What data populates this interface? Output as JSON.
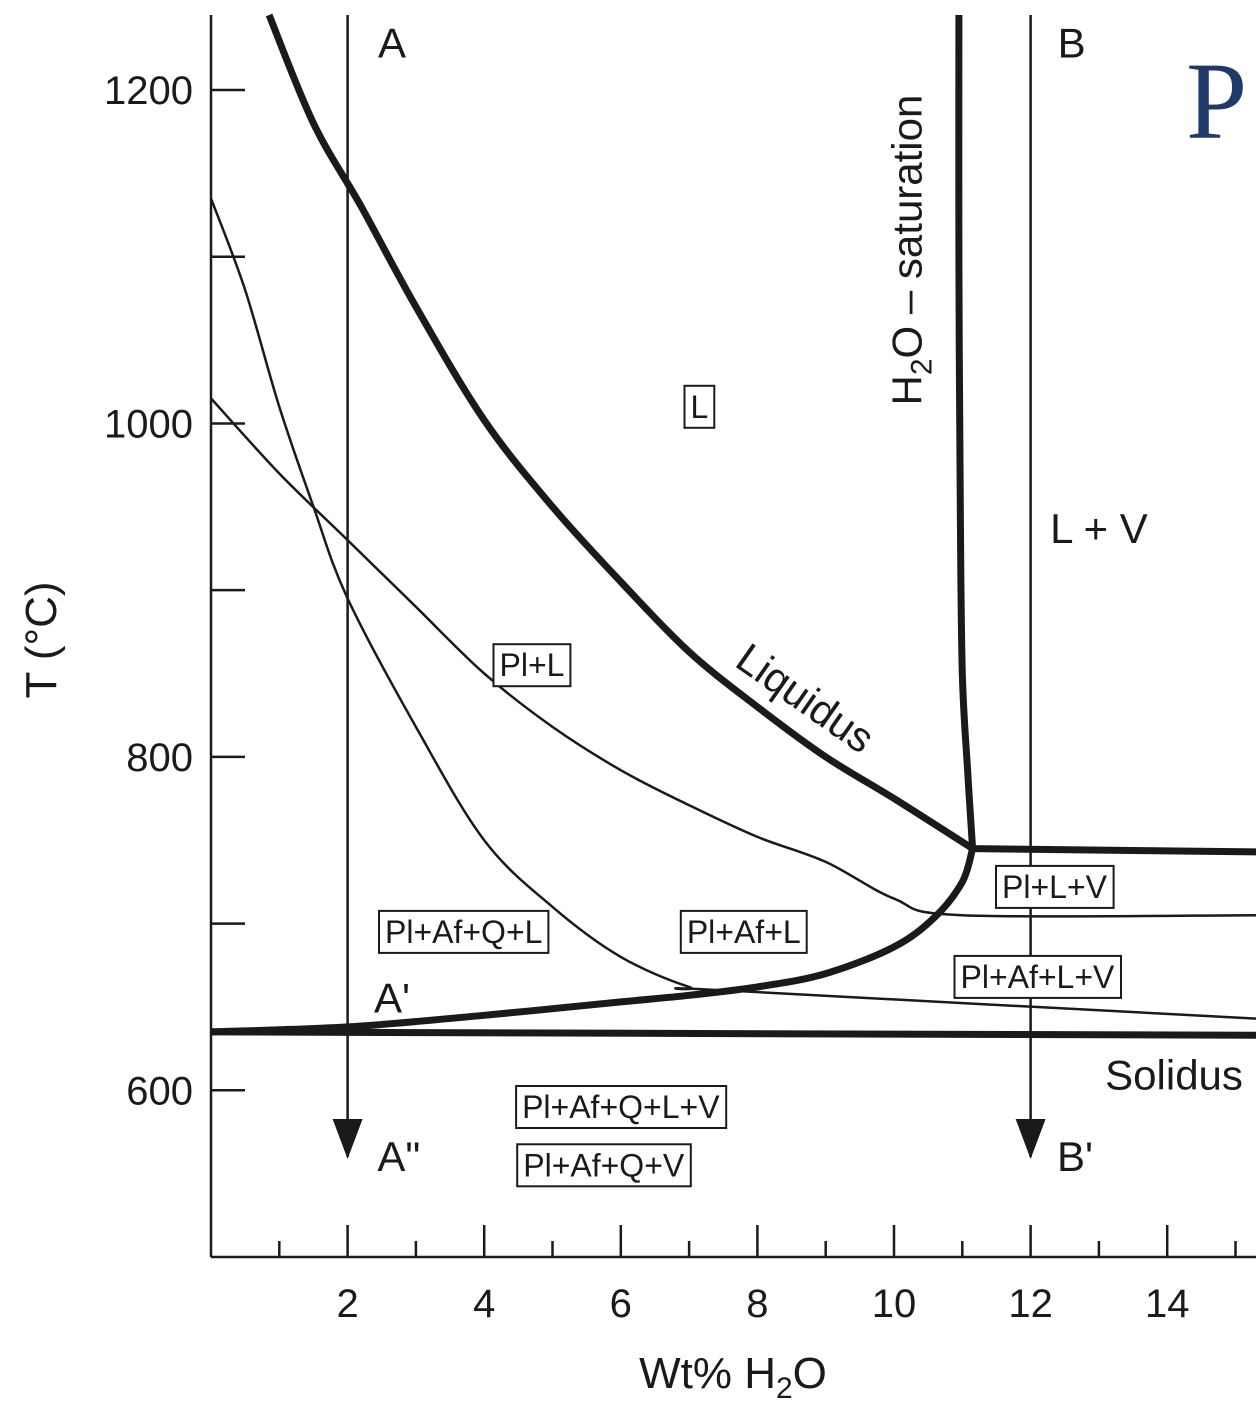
{
  "chart_data": {
    "type": "line",
    "title": "",
    "xlabel": "Wt% H",
    "xlabel_sub": "2",
    "xlabel_tail": "O",
    "ylabel": "T (°C)",
    "xlim": [
      0,
      15.3
    ],
    "ylim": [
      500,
      1245
    ],
    "x_ticks": [
      2,
      4,
      6,
      8,
      10,
      12,
      14
    ],
    "x_minor_ticks": [
      1,
      3,
      5,
      7,
      9,
      11,
      13,
      15
    ],
    "y_ticks": [
      600,
      800,
      1000,
      1200
    ],
    "y_minor_ticks": [
      700,
      900,
      1100
    ],
    "grid": false,
    "corner_glyph": "P",
    "series": [
      {
        "id": "liquidus",
        "name": "Liquidus",
        "weight": "thick",
        "x": [
          0.85,
          1.5,
          2.2,
          3.0,
          4.0,
          5.0,
          6.0,
          7.0,
          8.0,
          9.0,
          10.0,
          11.15
        ],
        "y": [
          1245,
          1180,
          1130,
          1070,
          1002,
          950,
          905,
          863,
          830,
          800,
          775,
          745
        ]
      },
      {
        "id": "h2o-saturation",
        "name": "H₂O – saturation",
        "weight": "thick",
        "x": [
          10.95,
          10.95,
          10.97,
          11.0,
          11.08,
          11.15
        ],
        "y": [
          1245,
          1100,
          950,
          850,
          790,
          745
        ]
      },
      {
        "id": "l-v-boundary",
        "weight": "thick",
        "x": [
          11.15,
          15.3
        ],
        "y": [
          745,
          743
        ]
      },
      {
        "id": "vapor-saturation-curve",
        "weight": "thick",
        "x": [
          11.15,
          11.0,
          10.6,
          10.0,
          9.0,
          8.0,
          7.0,
          6.0,
          4.0,
          2.0,
          0.0
        ],
        "y": [
          745,
          725,
          704,
          686,
          670,
          662,
          657,
          653,
          645,
          638,
          635
        ]
      },
      {
        "id": "solidus",
        "name": "Solidus",
        "weight": "thick",
        "x": [
          0.0,
          15.3
        ],
        "y": [
          635,
          633
        ]
      },
      {
        "id": "pl-in",
        "weight": "thin",
        "x": [
          0.0,
          1.0,
          2.0,
          3.0,
          4.0,
          5.0,
          6.0,
          7.0,
          8.0,
          9.0,
          10.0,
          11.0,
          15.3
        ],
        "y": [
          1015,
          970,
          930,
          890,
          850,
          818,
          792,
          771,
          752,
          737,
          715,
          705,
          705
        ]
      },
      {
        "id": "af-in",
        "weight": "thin",
        "x": [
          0.0,
          0.5,
          1.0,
          1.5,
          2.0,
          3.0,
          4.0,
          5.0,
          6.0,
          7.0,
          7.5,
          15.3
        ],
        "y": [
          1135,
          1080,
          1010,
          950,
          895,
          818,
          750,
          710,
          680,
          662,
          660,
          643
        ]
      }
    ],
    "paths": [
      {
        "id": "path-a",
        "x": 2.0,
        "y_from": 1245,
        "y_to": 560
      },
      {
        "id": "path-b",
        "x": 12.0,
        "y_from": 1245,
        "y_to": 560
      }
    ],
    "region_labels": [
      {
        "id": "l",
        "text": "L",
        "x": 7.15,
        "y": 1010,
        "boxed": true
      },
      {
        "id": "pl-l",
        "text": "Pl+L",
        "x": 4.7,
        "y": 855,
        "boxed": true
      },
      {
        "id": "pl-af-q-l",
        "text": "Pl+Af+Q+L",
        "x": 3.7,
        "y": 695,
        "boxed": true
      },
      {
        "id": "pl-af-l",
        "text": "Pl+Af+L",
        "x": 7.8,
        "y": 695,
        "boxed": true
      },
      {
        "id": "pl-l-v",
        "text": "Pl+L+V",
        "x": 12.35,
        "y": 722,
        "boxed": true
      },
      {
        "id": "pl-af-l-v",
        "text": "Pl+Af+L+V",
        "x": 12.1,
        "y": 668,
        "boxed": true
      },
      {
        "id": "pl-af-q-l-v",
        "text": "Pl+Af+Q+L+V",
        "x": 6.0,
        "y": 590,
        "boxed": true
      },
      {
        "id": "pl-af-q-v",
        "text": "Pl+Af+Q+V",
        "x": 5.75,
        "y": 555,
        "boxed": true
      },
      {
        "id": "l-v",
        "text": "L + V",
        "x": 13.0,
        "y": 935,
        "boxed": false
      }
    ],
    "markers": [
      {
        "id": "a",
        "text": "A",
        "x": 2.65,
        "y": 1228
      },
      {
        "id": "a-prime",
        "text": "A'",
        "x": 2.65,
        "y": 655
      },
      {
        "id": "a-double-prime",
        "text": "A\"",
        "x": 2.75,
        "y": 560
      },
      {
        "id": "b",
        "text": "B",
        "x": 12.6,
        "y": 1228
      },
      {
        "id": "b-prime",
        "text": "B'",
        "x": 12.65,
        "y": 560
      }
    ],
    "curve_labels": [
      {
        "id": "liquidus-label",
        "text": "Liquidus",
        "x": 8.7,
        "y": 835,
        "rotate": 35
      },
      {
        "id": "solidus-label",
        "text": "Solidus",
        "x": 14.1,
        "y": 609,
        "rotate": 0
      }
    ],
    "saturation_label": {
      "pre": "H",
      "sub": "2",
      "post": "O – saturation",
      "x": 10.4,
      "y": 1104
    }
  }
}
